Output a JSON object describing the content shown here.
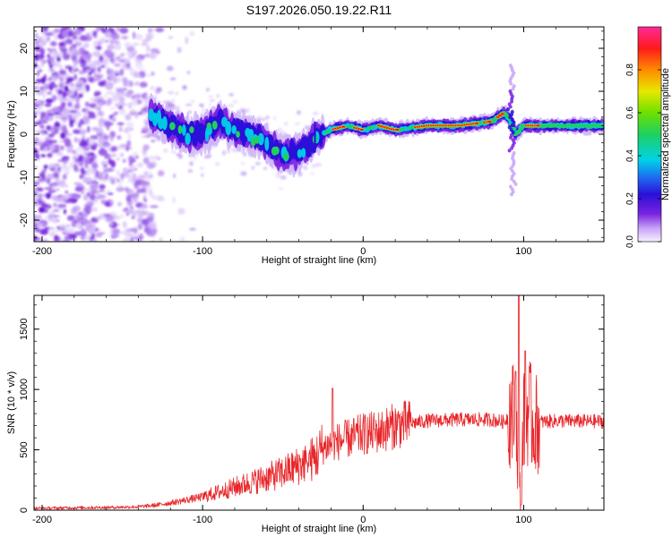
{
  "title": "S197.2026.050.19.22.R11",
  "chart_data": [
    {
      "type": "heatmap",
      "name": "spectrogram",
      "xlabel": "Height of straight line (km)",
      "ylabel": "Frequency (Hz)",
      "xlim": [
        -205,
        150
      ],
      "ylim": [
        -25,
        25
      ],
      "xticks": [
        -200,
        -100,
        0,
        100
      ],
      "yticks": [
        -20,
        -10,
        0,
        10,
        20
      ],
      "colorbar": {
        "label": "Normalized spectral amplitude",
        "range": [
          0.0,
          1.0
        ],
        "ticks": [
          "0.0",
          "0.2",
          "0.4",
          "0.6",
          "0.8"
        ]
      },
      "ridge": {
        "x": [
          -130,
          -120,
          -110,
          -100,
          -90,
          -80,
          -70,
          -60,
          -50,
          -40,
          -35,
          -30,
          -20,
          -10,
          0,
          10,
          20,
          40,
          60,
          80,
          88,
          92,
          95,
          100,
          120,
          150
        ],
        "y": [
          4,
          2,
          0,
          0,
          3,
          1,
          0,
          -2,
          -5,
          -4,
          -3,
          -1,
          1,
          2,
          1,
          2,
          1,
          2,
          2,
          3,
          5,
          3,
          0,
          2,
          2,
          2
        ]
      }
    },
    {
      "type": "line",
      "name": "snr",
      "xlabel": "Height of straight line (km)",
      "ylabel": "SNR (10 * v/v)",
      "xlim": [
        -205,
        150
      ],
      "ylim": [
        0,
        1780
      ],
      "xticks": [
        -200,
        -100,
        0,
        100
      ],
      "yticks": [
        0,
        500,
        1000,
        1500
      ],
      "series": [
        {
          "name": "SNR",
          "color": "#e8262a",
          "x": [
            -205,
            -180,
            -160,
            -140,
            -130,
            -120,
            -110,
            -100,
            -90,
            -80,
            -70,
            -60,
            -50,
            -40,
            -35,
            -30,
            -25,
            -20,
            -18,
            -15,
            -10,
            -5,
            0,
            10,
            20,
            30,
            40,
            60,
            80,
            88,
            92,
            95,
            97,
            98,
            100,
            103,
            106,
            110,
            120,
            150
          ],
          "y": [
            15,
            20,
            22,
            28,
            40,
            60,
            85,
            110,
            150,
            190,
            230,
            270,
            310,
            370,
            410,
            430,
            520,
            545,
            560,
            570,
            590,
            610,
            630,
            650,
            700,
            720,
            740,
            750,
            750,
            730,
            820,
            760,
            280,
            130,
            720,
            840,
            700,
            730,
            740,
            735
          ],
          "spikes": [
            {
              "x": -35,
              "y": 400
            },
            {
              "x": -19,
              "y": 1010
            },
            {
              "x": 97,
              "y": 1780
            },
            {
              "x": 95,
              "y": 1150
            },
            {
              "x": 98.5,
              "y": 50
            },
            {
              "x": 101,
              "y": 1320
            }
          ]
        }
      ]
    }
  ]
}
